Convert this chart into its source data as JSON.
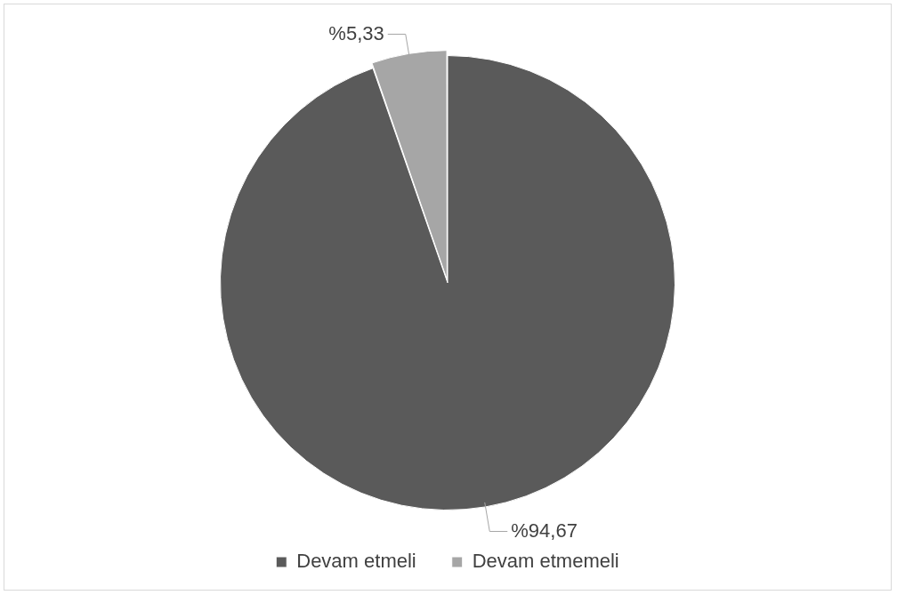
{
  "chart_data": {
    "type": "pie",
    "categories": [
      "Devam etmeli",
      "Devam etmemeli"
    ],
    "values": [
      94.67,
      5.33
    ],
    "colors": [
      "#5a5a5a",
      "#a6a6a6"
    ],
    "value_labels": [
      "%94,67",
      "%5,33"
    ],
    "legend": "bottom"
  }
}
